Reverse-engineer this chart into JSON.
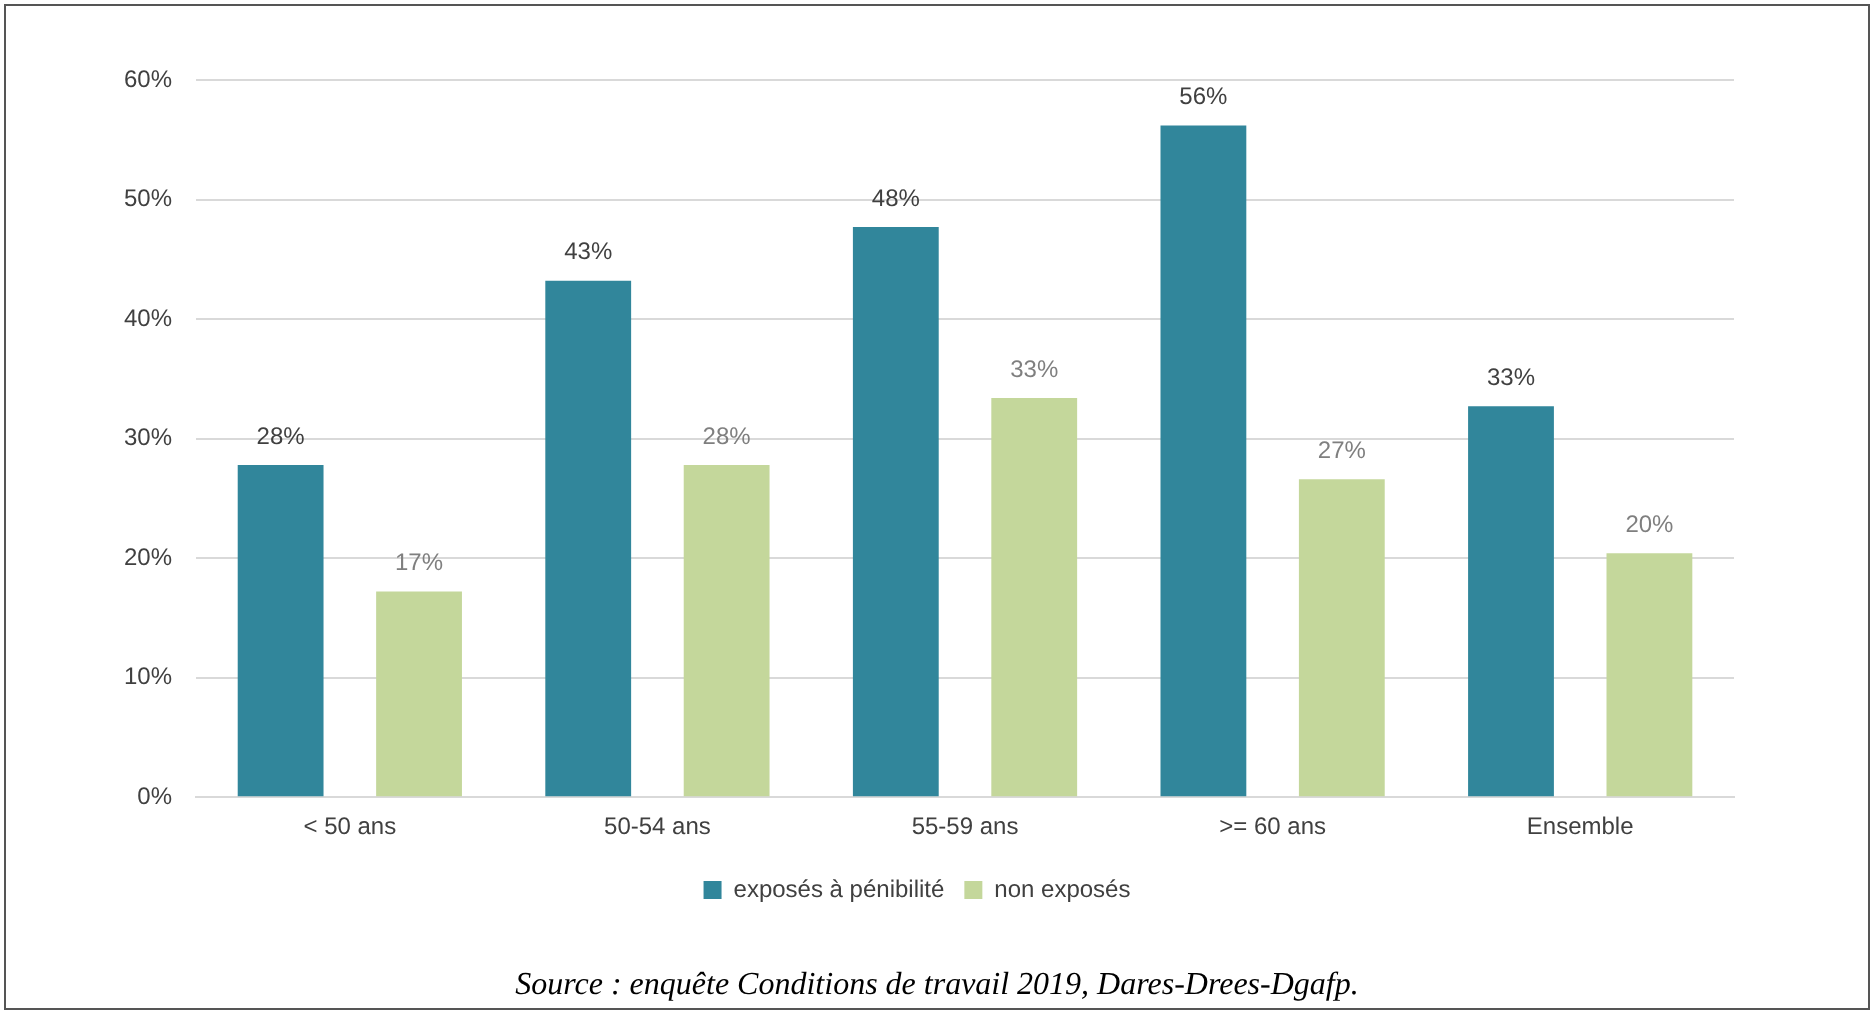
{
  "chart_data": {
    "type": "bar",
    "categories": [
      "< 50 ans",
      "50-54 ans",
      "55-59 ans",
      ">= 60 ans",
      "Ensemble"
    ],
    "series": [
      {
        "name": "exposés à pénibilité",
        "color": "#31869b",
        "values": [
          27.8,
          43.2,
          47.7,
          56.2,
          32.7
        ],
        "value_labels": [
          "28%",
          "43%",
          "48%",
          "56%",
          "33%"
        ]
      },
      {
        "name": "non exposés",
        "color": "#c4d79b",
        "values": [
          17.2,
          27.8,
          33.4,
          26.6,
          20.4
        ],
        "value_labels": [
          "17%",
          "28%",
          "33%",
          "27%",
          "20%"
        ]
      }
    ],
    "ylim": [
      0,
      60
    ],
    "yticks": [
      {
        "value": 0,
        "label": "0%"
      },
      {
        "value": 10,
        "label": "10%"
      },
      {
        "value": 20,
        "label": "20%"
      },
      {
        "value": 30,
        "label": "30%"
      },
      {
        "value": 40,
        "label": "40%"
      },
      {
        "value": 50,
        "label": "50%"
      },
      {
        "value": 60,
        "label": "60%"
      }
    ],
    "grid": "y",
    "legend": "bottom",
    "annotations": [
      "Source : enquête Conditions de travail 2019, Dares-Drees-Dgafp."
    ]
  }
}
